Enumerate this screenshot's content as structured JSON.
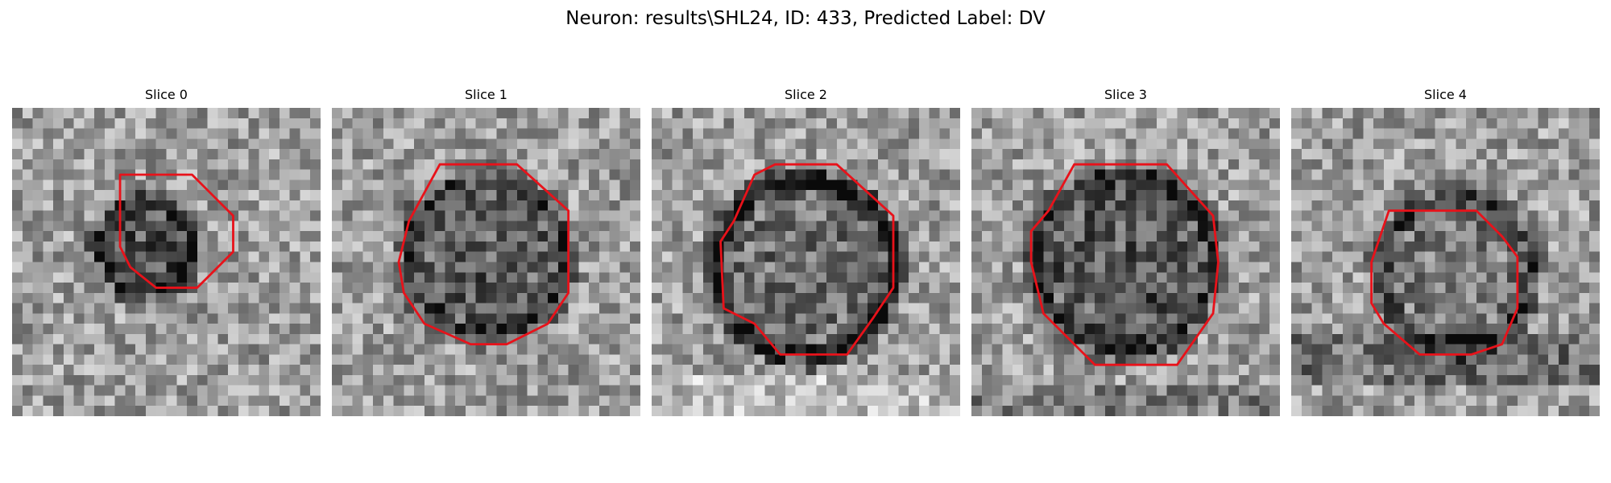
{
  "figure": {
    "title": "Neuron: results\\SHL24, ID: 433, Predicted Label: DV"
  },
  "slices": [
    {
      "label": "Slice 0"
    },
    {
      "label": "Slice 1"
    },
    {
      "label": "Slice 2"
    },
    {
      "label": "Slice 3"
    },
    {
      "label": "Slice 4"
    }
  ],
  "colors": {
    "contour": "#e8121a",
    "background": "#ffffff"
  },
  "colormap": "grayscale"
}
